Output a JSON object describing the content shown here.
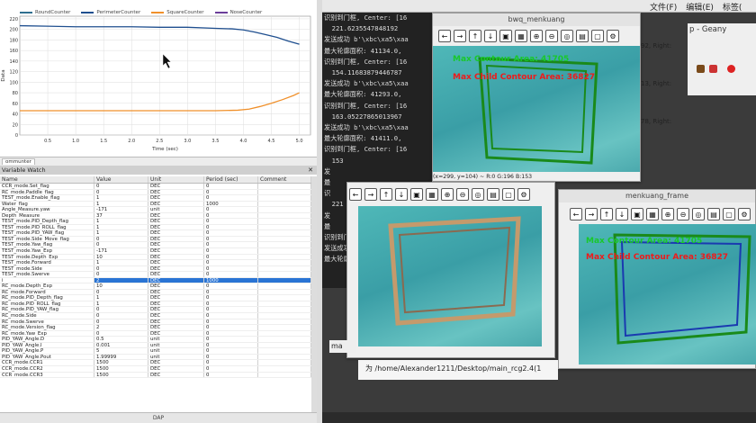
{
  "chart": {
    "legend": [
      {
        "name": "RoundCounter",
        "color": "#2f6f8f"
      },
      {
        "name": "PerimeterCounter",
        "color": "#1f4f8f"
      },
      {
        "name": "SquareCounter",
        "color": "#f0902a"
      },
      {
        "name": "NoseCounter",
        "color": "#6b3e9a"
      }
    ],
    "xlabel": "Time (sec)",
    "ylabel": "Data",
    "x_ticks": [
      "0.5",
      "1.0",
      "1.5",
      "2.0",
      "2.5",
      "3.0",
      "3.5",
      "4.0",
      "4.5",
      "5.0"
    ],
    "y_ticks": [
      "220",
      "200",
      "180",
      "160",
      "140",
      "120",
      "100",
      "80",
      "60",
      "40",
      "20",
      "0"
    ]
  },
  "chart_data": {
    "type": "line",
    "xlabel": "Time (sec)",
    "ylabel": "Data",
    "xlim": [
      0,
      5.2
    ],
    "ylim": [
      0,
      225
    ],
    "series": [
      {
        "name": "PerimeterCounter",
        "color": "#1f4f8f",
        "x": [
          0,
          0.5,
          1.0,
          1.5,
          2.0,
          2.5,
          3.0,
          3.5,
          3.8,
          4.0,
          4.2,
          4.4,
          4.6,
          4.8,
          5.0
        ],
        "y": [
          207,
          206,
          205,
          205,
          205,
          204,
          204,
          202,
          201,
          199,
          195,
          190,
          185,
          178,
          172
        ]
      },
      {
        "name": "SquareCounter",
        "color": "#f0902a",
        "x": [
          0,
          0.5,
          1.0,
          1.5,
          2.0,
          2.5,
          3.0,
          3.5,
          3.9,
          4.1,
          4.3,
          4.5,
          4.7,
          4.9,
          5.0
        ],
        "y": [
          46,
          46,
          46,
          46,
          46,
          46,
          46,
          46,
          47,
          49,
          54,
          60,
          67,
          75,
          80
        ]
      }
    ]
  },
  "tab_strip": {
    "label": "ommunter"
  },
  "watch": {
    "title": "Variable Watch",
    "headers": {
      "name": "Name",
      "value": "Value",
      "unit": "Unit",
      "period": "Period (sec)",
      "comment": "Comment"
    },
    "footer": "DAP",
    "rows": [
      {
        "name": "CCR_mode.Set_flag",
        "value": "0",
        "unit": "DEC",
        "period": "0"
      },
      {
        "name": "RC_mode.Paddle_flag",
        "value": "0",
        "unit": "DEC",
        "period": "0"
      },
      {
        "name": "TEST_mode.Enable_flag",
        "value": "1",
        "unit": "DEC",
        "period": "0"
      },
      {
        "name": "Water_flag",
        "value": "1",
        "unit": "DEC",
        "period": "1000"
      },
      {
        "name": "Angle_Measure.yaw",
        "value": "-171",
        "unit": "unit",
        "period": "0"
      },
      {
        "name": "Depth_Measure",
        "value": "37",
        "unit": "DEC",
        "period": "0"
      },
      {
        "name": "TEST_mode.PID_Depth_flag",
        "value": "1",
        "unit": "DEC",
        "period": "0"
      },
      {
        "name": "TEST_mode.PID_ROLL_flag",
        "value": "1",
        "unit": "DEC",
        "period": "0"
      },
      {
        "name": "TEST_mode.PID_YAW_flag",
        "value": "1",
        "unit": "DEC",
        "period": "0"
      },
      {
        "name": "TEST_mode.Side_Move_flag",
        "value": "0",
        "unit": "DEC",
        "period": "0"
      },
      {
        "name": "TEST_mode.Yaw_flag",
        "value": "0",
        "unit": "DEC",
        "period": "0"
      },
      {
        "name": "TEST_mode.Yaw_Exp",
        "value": "-171",
        "unit": "DEC",
        "period": "0"
      },
      {
        "name": "TEST_mode.Depth_Exp",
        "value": "10",
        "unit": "DEC",
        "period": "0"
      },
      {
        "name": "TEST_mode.Forward",
        "value": "1",
        "unit": "DEC",
        "period": "0"
      },
      {
        "name": "TEST_mode.Side",
        "value": "0",
        "unit": "DEC",
        "period": "0"
      },
      {
        "name": "TEST_mode.Swerve",
        "value": "0",
        "unit": "DEC",
        "period": "0"
      },
      {
        "name": "i",
        "value": "2",
        "unit": "DEC",
        "period": "1000",
        "selected": true
      },
      {
        "name": "RC_mode.Depth_Exp",
        "value": "10",
        "unit": "DEC",
        "period": "0"
      },
      {
        "name": "RC_mode.Forward",
        "value": "0",
        "unit": "DEC",
        "period": "0"
      },
      {
        "name": "RC_mode.PID_Depth_flag",
        "value": "1",
        "unit": "DEC",
        "period": "0"
      },
      {
        "name": "RC_mode.PID_ROLL_flag",
        "value": "1",
        "unit": "DEC",
        "period": "0"
      },
      {
        "name": "RC_mode.PID_YAW_flag",
        "value": "0",
        "unit": "DEC",
        "period": "0"
      },
      {
        "name": "RC_mode.Side",
        "value": "0",
        "unit": "DEC",
        "period": "0"
      },
      {
        "name": "RC_mode.Swerve",
        "value": "0",
        "unit": "DEC",
        "period": "0"
      },
      {
        "name": "RC_mode.Version_flag",
        "value": "2",
        "unit": "DEC",
        "period": "0"
      },
      {
        "name": "RC_mode.Yaw_Exp",
        "value": "0",
        "unit": "DEC",
        "period": "0"
      },
      {
        "name": "PID_YAW_Angle.D",
        "value": "0.5",
        "unit": "unit",
        "period": "0"
      },
      {
        "name": "PID_YAW_Angle.I",
        "value": "0.001",
        "unit": "unit",
        "period": "0"
      },
      {
        "name": "PID_YAW_Angle.P",
        "value": "5",
        "unit": "unit",
        "period": "0"
      },
      {
        "name": "PID_YAW_Angle.Pout",
        "value": "1.99999",
        "unit": "unit",
        "period": "0"
      },
      {
        "name": "CCR_mode.CCR1",
        "value": "1500",
        "unit": "DEC",
        "period": "0"
      },
      {
        "name": "CCR_mode.CCR2",
        "value": "1500",
        "unit": "DEC",
        "period": "0"
      },
      {
        "name": "CCR_mode.CCR3",
        "value": "1500",
        "unit": "DEC",
        "period": "0"
      }
    ]
  },
  "editor": {
    "menus": [
      "文件(F)",
      "编辑(E)",
      "标签("
    ],
    "title": "p - Geany"
  },
  "terminal": {
    "lines": [
      "识别到门框, Center: [16",
      "  221.6235547848192",
      "发送成功 b'\\xbc\\xa5\\xaa",
      "最大轮廓面积: 41134.0,",
      "识别到门框, Center: [16",
      "  154.11683879446787",
      "发送成功 b'\\xbc\\xa5\\xaa",
      "最大轮廓面积: 41293.0,",
      "识别到门框, Center: [16",
      "  163.05227865013967",
      "发送成功 b'\\xbc\\xa5\\xaa",
      "最大轮廓面积: 41411.0,",
      "识别到门框, Center: [16",
      "  153",
      "发",
      "最",
      "识",
      "  221",
      "发",
      "最",
      "识别到门框, Center: [16",
      "发送成功 b'\\xbc\\xa5\\xaa",
      "最大轮廓面积:"
    ],
    "right_frags": [
      "92, Right:",
      "13, Right:",
      "78, Right:"
    ]
  },
  "cv_top": {
    "title": "bwq_menkuang",
    "max_area": "Max Contour Area: 41705",
    "child_area": "Max Child Contour Area: 36827",
    "status": "(x=299, y=104) ~ R:0 G:196 B:153"
  },
  "cv_mid": {
    "title": ""
  },
  "cv_right": {
    "title": "menkuang_frame",
    "max_area": "Max Contour Area: 41705",
    "child_area": "Max Child Contour Area: 36827"
  },
  "bottom_path": "为 /home/Alexander1211/Desktop/main_rcg2.4(1",
  "bottom_left_frag": "ma"
}
